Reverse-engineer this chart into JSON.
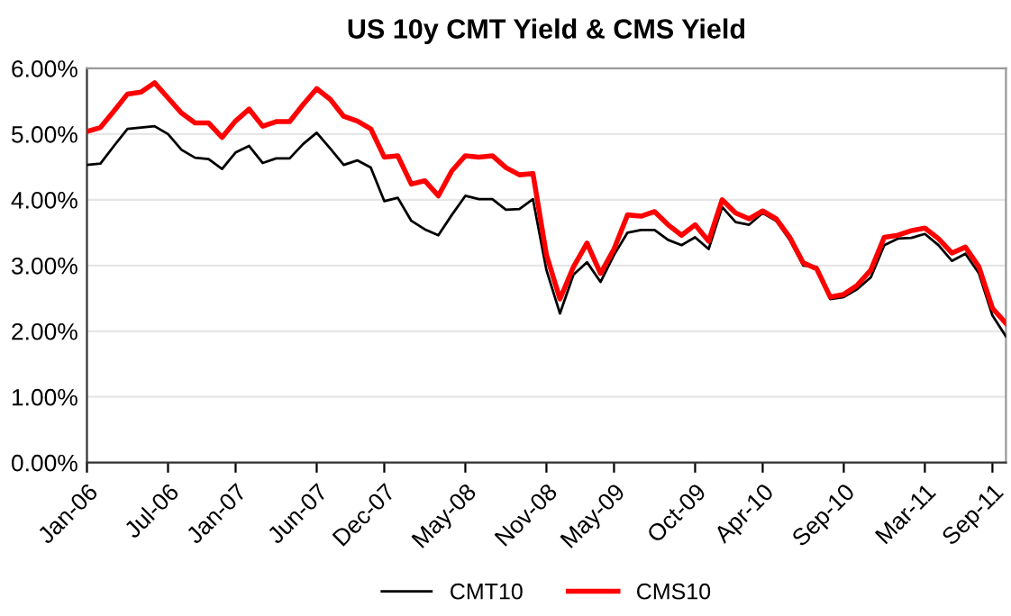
{
  "chart_data": {
    "type": "line",
    "title": "US 10y CMT Yield & CMS Yield",
    "categories": [
      "Jan-06",
      null,
      null,
      null,
      null,
      null,
      "Jul-06",
      null,
      null,
      null,
      null,
      "Jan-07",
      null,
      null,
      null,
      null,
      null,
      "Jun-07",
      null,
      null,
      null,
      null,
      "Dec-07",
      null,
      null,
      null,
      null,
      null,
      "May-08",
      null,
      null,
      null,
      null,
      null,
      "Nov-08",
      null,
      null,
      null,
      null,
      "May-09",
      null,
      null,
      null,
      null,
      null,
      "Oct-09",
      null,
      null,
      null,
      null,
      "Apr-10",
      null,
      null,
      null,
      null,
      null,
      "Sep-10",
      null,
      null,
      null,
      null,
      null,
      "Mar-11",
      null,
      null,
      null,
      null,
      "Sep-11",
      null
    ],
    "series": [
      {
        "name": "CMT10",
        "color": "#000000",
        "values": [
          4.53,
          4.55,
          4.82,
          5.08,
          5.1,
          5.12,
          5.0,
          4.76,
          4.64,
          4.62,
          4.47,
          4.72,
          4.82,
          4.56,
          4.63,
          4.63,
          4.85,
          5.02,
          4.78,
          4.53,
          4.6,
          4.49,
          3.98,
          4.03,
          3.68,
          3.55,
          3.46,
          3.77,
          4.06,
          4.01,
          4.01,
          3.85,
          3.86,
          4.01,
          2.93,
          2.27,
          2.86,
          3.05,
          2.75,
          3.16,
          3.5,
          3.54,
          3.54,
          3.39,
          3.31,
          3.43,
          3.25,
          3.89,
          3.66,
          3.62,
          3.8,
          3.68,
          3.39,
          3.0,
          2.98,
          2.49,
          2.52,
          2.64,
          2.82,
          3.31,
          3.41,
          3.42,
          3.48,
          3.31,
          3.07,
          3.18,
          2.88,
          2.24,
          1.92
        ]
      },
      {
        "name": "CMS10",
        "color": "#ff0000",
        "values": [
          5.04,
          5.1,
          5.35,
          5.61,
          5.64,
          5.78,
          5.55,
          5.32,
          5.17,
          5.17,
          4.95,
          5.2,
          5.38,
          5.12,
          5.19,
          5.19,
          5.45,
          5.69,
          5.53,
          5.27,
          5.2,
          5.08,
          4.65,
          4.67,
          4.24,
          4.29,
          4.06,
          4.44,
          4.67,
          4.65,
          4.67,
          4.49,
          4.38,
          4.4,
          3.16,
          2.49,
          2.98,
          3.34,
          2.88,
          3.25,
          3.77,
          3.75,
          3.82,
          3.62,
          3.46,
          3.62,
          3.37,
          4.0,
          3.8,
          3.71,
          3.83,
          3.71,
          3.43,
          3.04,
          2.95,
          2.52,
          2.56,
          2.7,
          2.93,
          3.43,
          3.46,
          3.53,
          3.57,
          3.41,
          3.19,
          3.28,
          2.98,
          2.35,
          2.12
        ]
      }
    ],
    "ylim": [
      0,
      6
    ],
    "yticks": [
      {
        "value": 0,
        "label": "0.00%"
      },
      {
        "value": 1,
        "label": "1.00%"
      },
      {
        "value": 2,
        "label": "2.00%"
      },
      {
        "value": 3,
        "label": "3.00%"
      },
      {
        "value": 4,
        "label": "4.00%"
      },
      {
        "value": 5,
        "label": "5.00%"
      },
      {
        "value": 6,
        "label": "6.00%"
      }
    ],
    "grid": "y",
    "legend": "bottom",
    "marker": "none",
    "line_style": "solid"
  }
}
